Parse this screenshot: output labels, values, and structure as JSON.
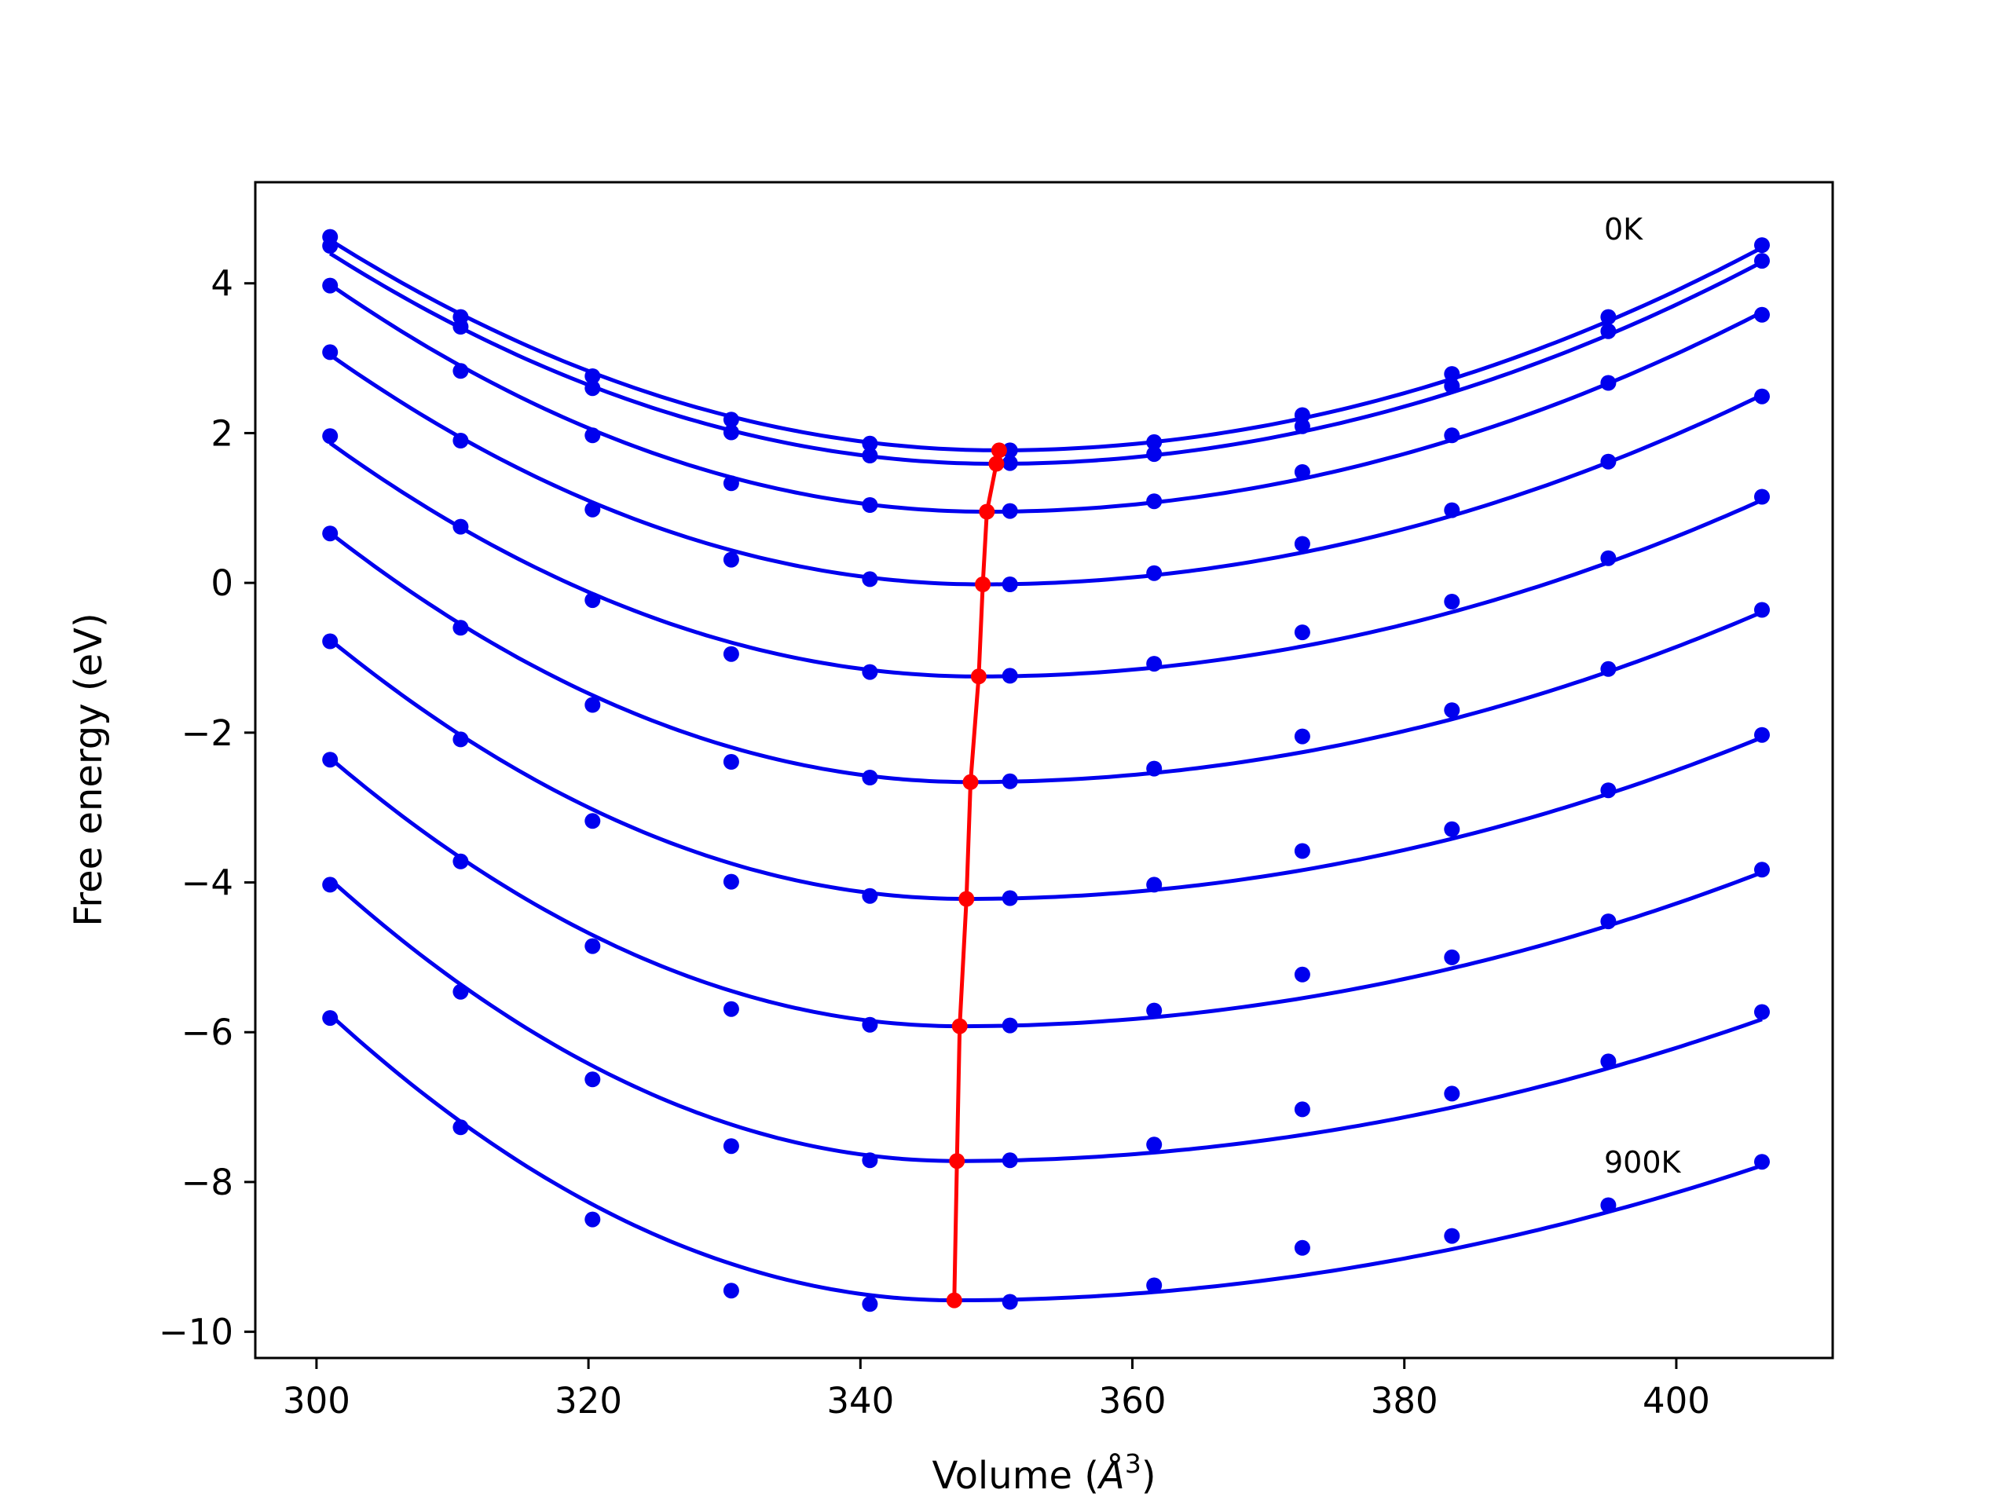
{
  "chart_data": {
    "type": "line",
    "title": "",
    "xlabel": "Volume (",
    "xlabel_symbol": "Å",
    "xlabel_exponent": "3",
    "xlabel_close": ")",
    "ylabel": "Free energy (eV)",
    "xlim": [
      295.5,
      411.5
    ],
    "ylim": [
      -10.35,
      5.35
    ],
    "xticks": [
      "300",
      "320",
      "340",
      "360",
      "380",
      "400"
    ],
    "xtick_values": [
      300,
      320,
      340,
      360,
      380,
      400
    ],
    "yticks": [
      "−10",
      "−8",
      "−6",
      "−4",
      "−2",
      "0",
      "2",
      "4"
    ],
    "ytick_values": [
      -10,
      -8,
      -6,
      -4,
      -2,
      0,
      2,
      4
    ],
    "grid": false,
    "annotations": [
      "0K",
      "900K"
    ],
    "volumes": [
      301.0,
      310.6,
      320.3,
      330.5,
      340.7,
      351.0,
      361.6,
      372.5,
      383.5,
      395.0,
      406.3
    ],
    "series": [
      {
        "values": [
          4.62,
          3.55,
          2.76,
          2.18,
          1.86,
          1.77,
          1.88,
          2.24,
          2.79,
          3.55,
          4.51
        ],
        "fit": {
          "v0": 350.2,
          "e0": 1.77,
          "a_left": 0.00116,
          "a_right": 0.00086
        }
      },
      {
        "values": [
          4.5,
          3.42,
          2.6,
          2.01,
          1.7,
          1.6,
          1.72,
          2.09,
          2.63,
          3.36,
          4.3
        ],
        "fit": {
          "v0": 350.0,
          "e0": 1.59,
          "a_left": 0.00117,
          "a_right": 0.00085
        }
      },
      {
        "values": [
          3.97,
          2.83,
          1.97,
          1.33,
          1.04,
          0.96,
          1.09,
          1.48,
          1.97,
          2.67,
          3.58
        ],
        "fit": {
          "v0": 349.3,
          "e0": 0.95,
          "a_left": 0.0013,
          "a_right": 0.00082
        }
      },
      {
        "values": [
          3.08,
          1.9,
          0.98,
          0.31,
          0.05,
          -0.02,
          0.13,
          0.52,
          0.97,
          1.62,
          2.49
        ],
        "fit": {
          "v0": 349.0,
          "e0": -0.02,
          "a_left": 0.00133,
          "a_right": 0.00077
        }
      },
      {
        "values": [
          1.96,
          0.75,
          -0.23,
          -0.95,
          -1.19,
          -1.24,
          -1.08,
          -0.66,
          -0.25,
          0.33,
          1.15
        ],
        "fit": {
          "v0": 348.7,
          "e0": -1.25,
          "a_left": 0.00137,
          "a_right": 0.00071
        }
      },
      {
        "values": [
          0.66,
          -0.6,
          -1.63,
          -2.39,
          -2.6,
          -2.65,
          -2.48,
          -2.05,
          -1.7,
          -1.15,
          -0.36
        ],
        "fit": {
          "v0": 348.1,
          "e0": -2.66,
          "a_left": 0.0015,
          "a_right": 0.00067
        }
      },
      {
        "values": [
          -0.78,
          -2.09,
          -3.18,
          -3.99,
          -4.18,
          -4.21,
          -4.03,
          -3.58,
          -3.29,
          -2.77,
          -2.03
        ],
        "fit": {
          "v0": 347.8,
          "e0": -4.22,
          "a_left": 0.00158,
          "a_right": 0.00063
        }
      },
      {
        "values": [
          -2.36,
          -3.72,
          -4.85,
          -5.69,
          -5.9,
          -5.91,
          -5.71,
          -5.23,
          -5.0,
          -4.52,
          -3.83
        ],
        "fit": {
          "v0": 347.3,
          "e0": -5.92,
          "a_left": 0.00167,
          "a_right": 0.00059
        }
      },
      {
        "values": [
          -4.03,
          -5.46,
          -6.63,
          -7.52,
          -7.71,
          -7.71,
          -7.5,
          -7.03,
          -6.82,
          -6.39,
          -5.73
        ],
        "fit": {
          "v0": 347.1,
          "e0": -7.72,
          "a_left": 0.00177,
          "a_right": 0.00054
        }
      },
      {
        "values": [
          -5.81,
          -7.27,
          -8.5,
          -9.45,
          -9.63,
          -9.6,
          -9.38,
          -8.88,
          -8.72,
          -8.31,
          -7.73
        ],
        "fit": {
          "v0": 346.9,
          "e0": -9.58,
          "a_left": 0.00181,
          "a_right": 0.00051
        }
      }
    ],
    "equilibrium": {
      "x": [
        350.2,
        350.0,
        349.3,
        349.0,
        348.7,
        348.1,
        347.8,
        347.3,
        347.1,
        346.9
      ],
      "y": [
        1.77,
        1.59,
        0.95,
        -0.02,
        -1.25,
        -2.66,
        -4.22,
        -5.92,
        -7.72,
        -9.58
      ]
    },
    "colors": {
      "series": "#0000ee",
      "equilibrium": "#ff0000",
      "axes": "#000000",
      "background": "#ffffff"
    }
  }
}
